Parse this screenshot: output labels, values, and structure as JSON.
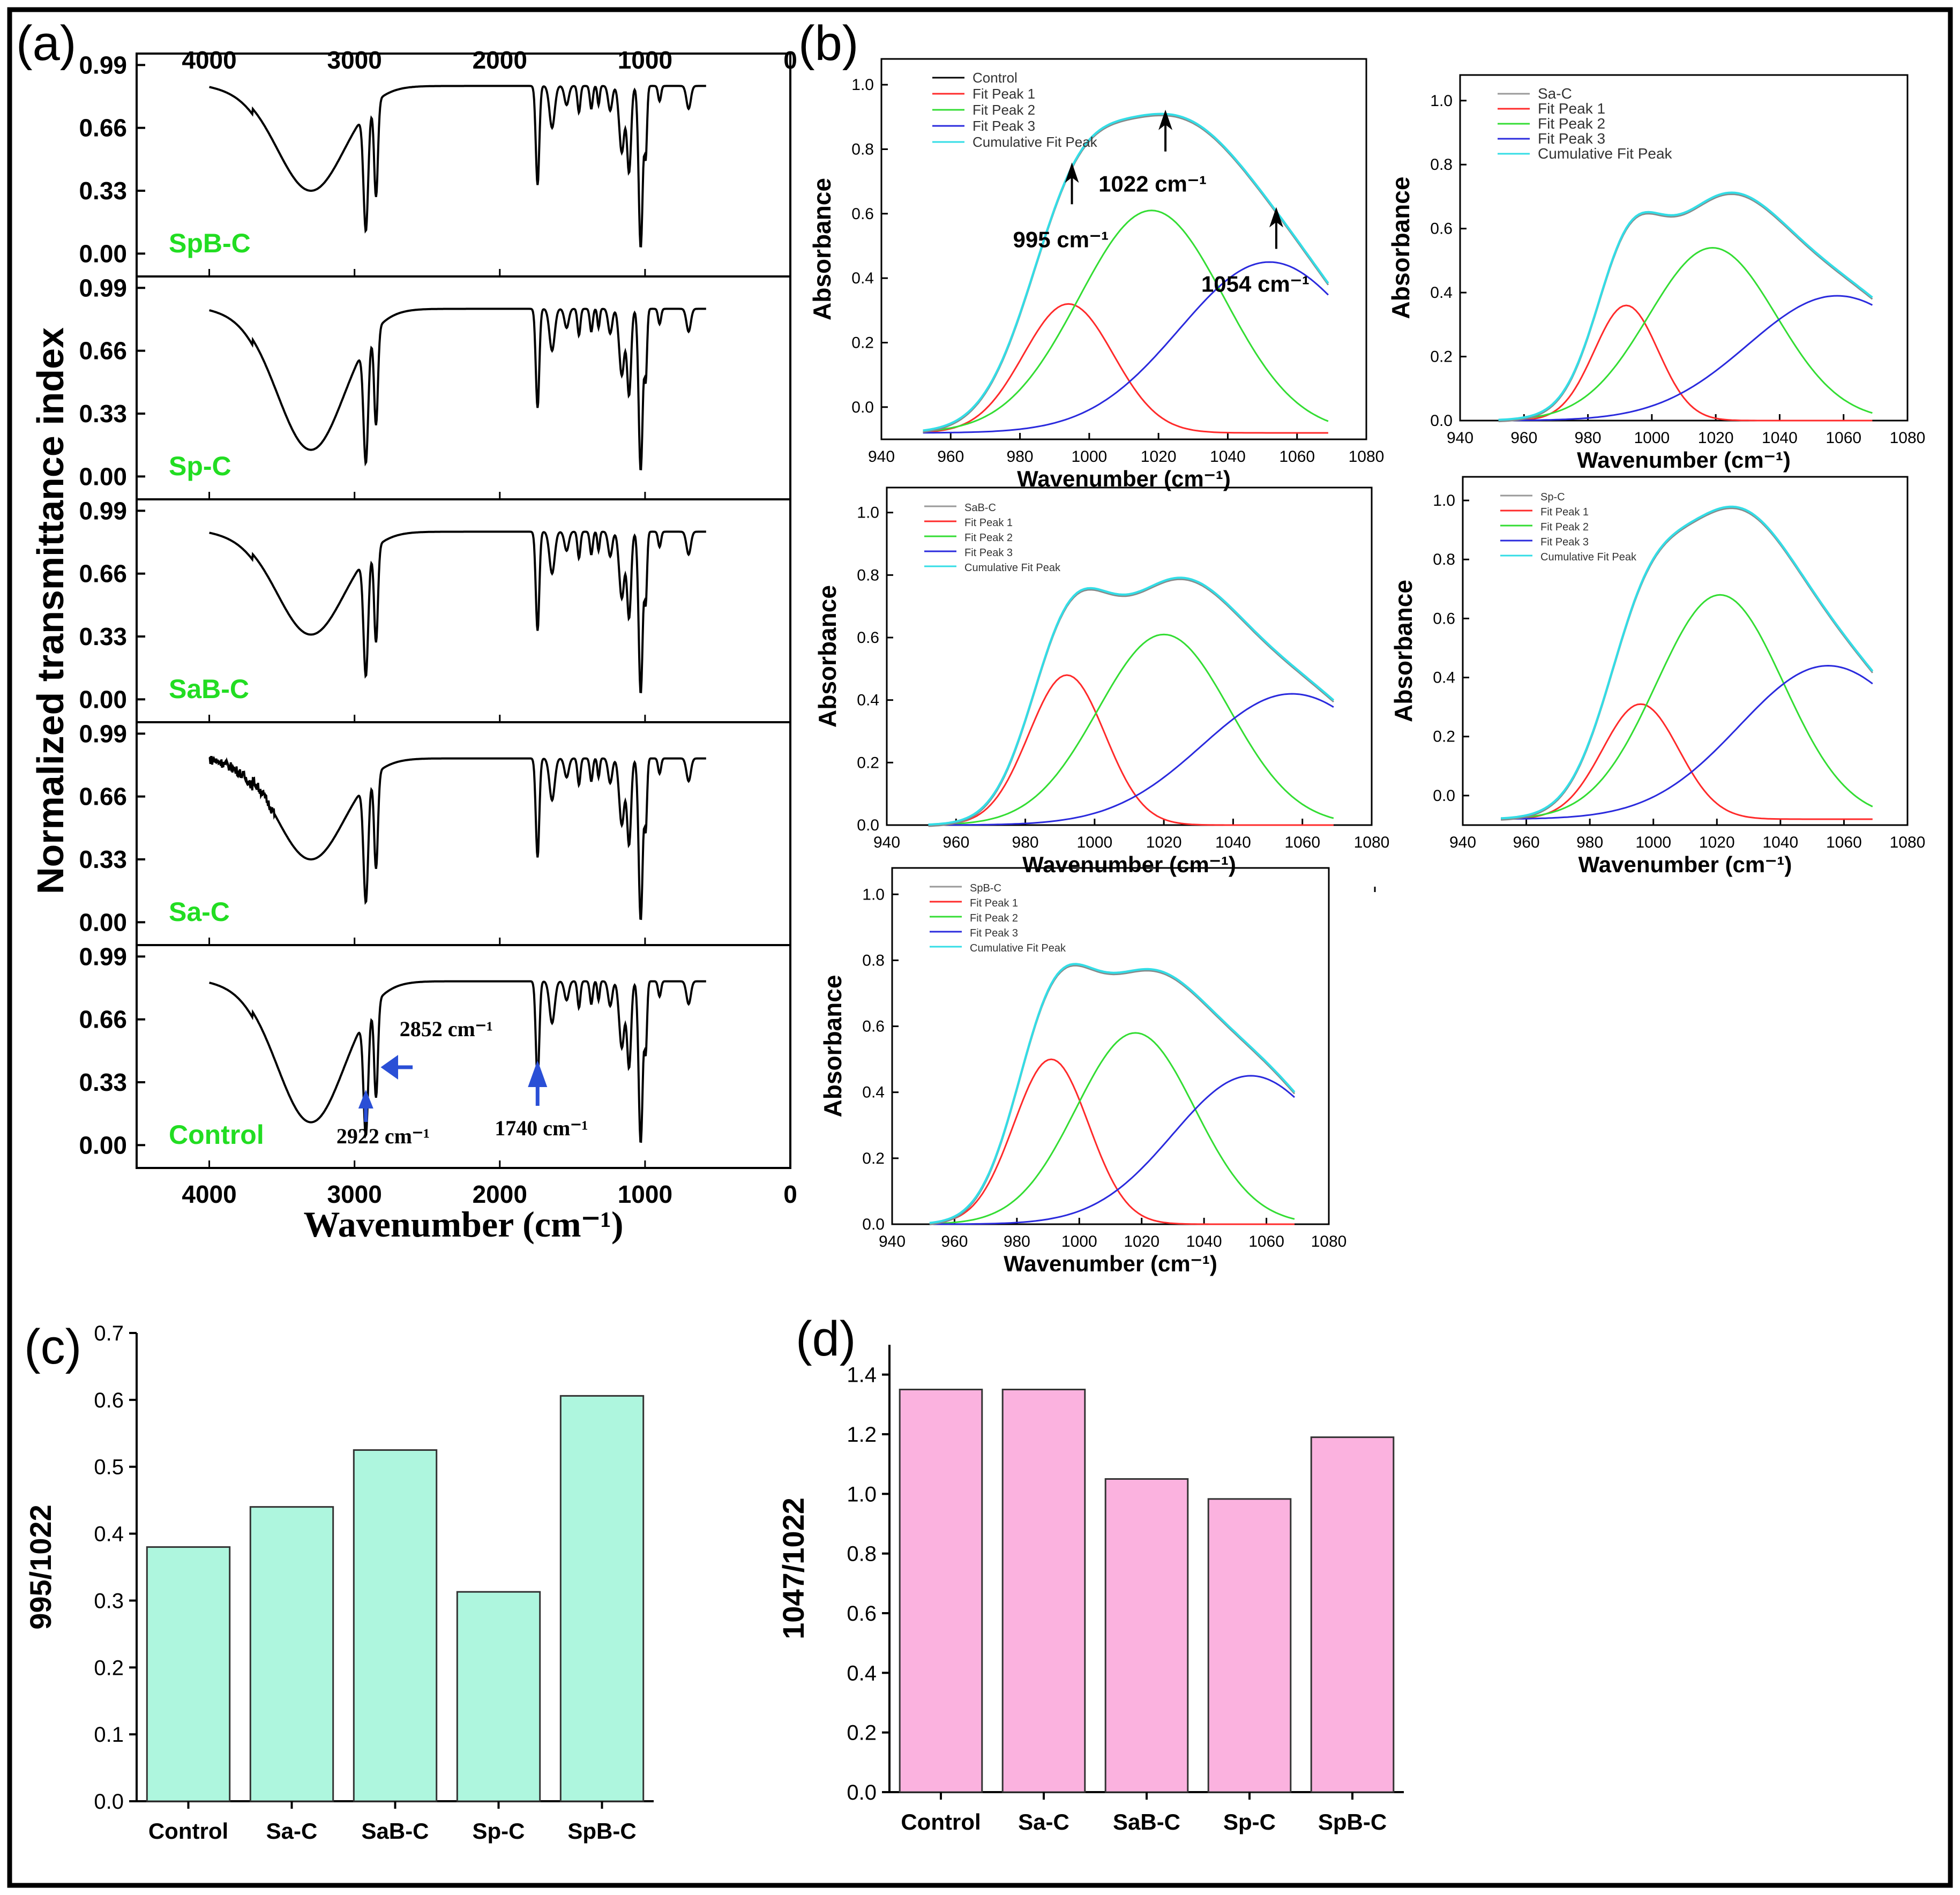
{
  "colors": {
    "frame": "#000000",
    "sample_label": "#22dd22",
    "arrow": "#2a4fd6",
    "control": "#000000",
    "fit_peak_1": "#ff2a2a",
    "fit_peak_2": "#33dd33",
    "fit_peak_3": "#2a2add",
    "cumulative": "#33dde6",
    "bar_c": "#aef6de",
    "bar_d": "#fbb2df"
  },
  "chart_data": [
    {
      "id": "a",
      "panel_label": "(a)",
      "type": "line",
      "title": "",
      "xlabel": "Wavenumber (cm⁻¹)",
      "ylabel": "Normalized transmittance index",
      "xlim": [
        4500,
        0
      ],
      "x_ticks": [
        "4000",
        "3000",
        "2000",
        "1000",
        "0"
      ],
      "ylim": [
        -0.12,
        1.05
      ],
      "y_ticks": [
        "0.00",
        "0.33",
        "0.66",
        "0.99"
      ],
      "legend": "none",
      "samples": [
        {
          "name": "SpB-C",
          "baseline": 0.88,
          "oh_min": 0.33
        },
        {
          "name": "Sp-C",
          "baseline": 0.88,
          "oh_min": 0.14
        },
        {
          "name": "SaB-C",
          "baseline": 0.88,
          "oh_min": 0.34
        },
        {
          "name": "Sa-C",
          "baseline": 0.86,
          "oh_min": 0.33
        },
        {
          "name": "Control",
          "baseline": 0.86,
          "oh_min": 0.12
        }
      ],
      "annotations": [
        {
          "text": "2852 cm⁻¹",
          "x": 2852
        },
        {
          "text": "2922 cm⁻¹",
          "x": 2922
        },
        {
          "text": "1740 cm⁻¹",
          "x": 1740
        }
      ]
    },
    {
      "id": "b",
      "panel_label": "(b)",
      "type": "line",
      "xlabel": "Wavenumber (cm⁻¹)",
      "ylabel": "Absorbance",
      "xlim": [
        940,
        1080
      ],
      "x_ticks": [
        "940",
        "960",
        "980",
        "1000",
        "1020",
        "1040",
        "1060",
        "1080"
      ],
      "legend": "top-left",
      "subplots": [
        {
          "name": "Control",
          "legend": [
            "Control",
            "Fit Peak 1",
            "Fit Peak 2",
            "Fit Peak 3",
            "Cumulative Fit Peak"
          ],
          "ylim": [
            -0.1,
            1.08
          ],
          "y_ticks": [
            "0.0",
            "0.2",
            "0.4",
            "0.6",
            "0.8",
            "1.0"
          ],
          "peaks": [
            {
              "center": 994,
              "height": 0.4,
              "width": 13
            },
            {
              "center": 1018,
              "height": 0.69,
              "width": 21
            },
            {
              "center": 1052,
              "height": 0.53,
              "width": 26
            }
          ],
          "baseline": -0.08,
          "annotations": [
            {
              "text": "1022 cm⁻¹",
              "x": 1022
            },
            {
              "text": "995 cm⁻¹",
              "x": 995
            },
            {
              "text": "1054 cm⁻¹",
              "x": 1054
            }
          ]
        },
        {
          "name": "Sa-C",
          "legend": [
            "Sa-C",
            "Fit Peak 1",
            "Fit Peak 2",
            "Fit Peak 3",
            "Cumulative Fit Peak"
          ],
          "ylim": [
            0.0,
            1.08
          ],
          "y_ticks": [
            "0.0",
            "0.2",
            "0.4",
            "0.6",
            "0.8",
            "1.0"
          ],
          "peaks": [
            {
              "center": 992,
              "height": 0.36,
              "width": 10
            },
            {
              "center": 1019,
              "height": 0.54,
              "width": 20
            },
            {
              "center": 1058,
              "height": 0.39,
              "width": 28
            }
          ],
          "baseline": 0.0,
          "annotations": []
        },
        {
          "name": "SaB-C",
          "legend": [
            "SaB-C",
            "Fit Peak 1",
            "Fit Peak 2",
            "Fit Peak 3",
            "Cumulative Fit Peak"
          ],
          "ylim": [
            0.0,
            1.08
          ],
          "y_ticks": [
            "0.0",
            "0.2",
            "0.4",
            "0.6",
            "0.8",
            "1.0"
          ],
          "peaks": [
            {
              "center": 992,
              "height": 0.48,
              "width": 11
            },
            {
              "center": 1020,
              "height": 0.61,
              "width": 19
            },
            {
              "center": 1057,
              "height": 0.42,
              "width": 26
            }
          ],
          "baseline": 0.0,
          "annotations": []
        },
        {
          "name": "Sp-C",
          "legend": [
            "Sp-C",
            "Fit Peak 1",
            "Fit Peak 2",
            "Fit Peak 3",
            "Cumulative Fit Peak"
          ],
          "ylim": [
            -0.1,
            1.08
          ],
          "y_ticks": [
            "0.0",
            "0.2",
            "0.4",
            "0.6",
            "0.8",
            "1.0"
          ],
          "peaks": [
            {
              "center": 996,
              "height": 0.39,
              "width": 12
            },
            {
              "center": 1021,
              "height": 0.76,
              "width": 20
            },
            {
              "center": 1055,
              "height": 0.52,
              "width": 28
            }
          ],
          "baseline": -0.08,
          "annotations": []
        },
        {
          "name": "SpB-C",
          "legend": [
            "SpB-C",
            "Fit Peak 1",
            "Fit Peak 2",
            "Fit Peak 3",
            "Cumulative Fit Peak"
          ],
          "ylim": [
            0.0,
            1.08
          ],
          "y_ticks": [
            "0.0",
            "0.2",
            "0.4",
            "0.6",
            "0.8",
            "1.0"
          ],
          "peaks": [
            {
              "center": 991,
              "height": 0.5,
              "width": 12
            },
            {
              "center": 1018,
              "height": 0.58,
              "width": 19
            },
            {
              "center": 1055,
              "height": 0.45,
              "width": 25
            }
          ],
          "baseline": 0.0,
          "annotations": []
        }
      ]
    },
    {
      "id": "c",
      "panel_label": "(c)",
      "type": "bar",
      "title": "",
      "xlabel": "",
      "ylabel": "995/1022",
      "categories": [
        "Control",
        "Sa-C",
        "SaB-C",
        "Sp-C",
        "SpB-C"
      ],
      "values": [
        0.38,
        0.44,
        0.525,
        0.313,
        0.606
      ],
      "ylim": [
        0.0,
        0.7
      ],
      "y_ticks": [
        "0.0",
        "0.1",
        "0.2",
        "0.3",
        "0.4",
        "0.5",
        "0.6",
        "0.7"
      ],
      "legend": "none"
    },
    {
      "id": "d",
      "panel_label": "(d)",
      "type": "bar",
      "title": "",
      "xlabel": "",
      "ylabel": "1047/1022",
      "categories": [
        "Control",
        "Sa-C",
        "SaB-C",
        "Sp-C",
        "SpB-C"
      ],
      "values": [
        1.35,
        1.35,
        1.05,
        0.983,
        1.19
      ],
      "ylim": [
        0.0,
        1.5
      ],
      "y_ticks": [
        "0.0",
        "0.2",
        "0.4",
        "0.6",
        "0.8",
        "1.0",
        "1.2",
        "1.4"
      ],
      "legend": "none"
    }
  ]
}
